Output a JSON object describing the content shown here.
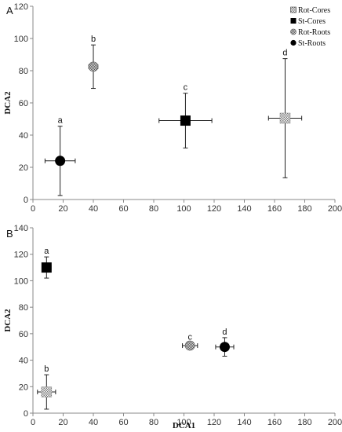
{
  "chart_data": [
    {
      "type": "scatter",
      "panel_label": "A",
      "xlabel": "",
      "ylabel": "DCA2",
      "xlim": [
        0,
        200
      ],
      "ylim": [
        0,
        120
      ],
      "x_ticks": [
        "0",
        "20",
        "40",
        "60",
        "80",
        "100",
        "120",
        "140",
        "160",
        "180",
        "200"
      ],
      "y_ticks": [
        "0",
        "20",
        "40",
        "60",
        "80",
        "100",
        "120"
      ],
      "legend_position": "top-right",
      "legend": [
        {
          "name": "Rot-Cores",
          "marker": "checker-square"
        },
        {
          "name": "St-Cores",
          "marker": "square"
        },
        {
          "name": "Rot-Roots",
          "marker": "checker-circle"
        },
        {
          "name": "St-Roots",
          "marker": "circle"
        }
      ],
      "points": [
        {
          "series": "St-Roots",
          "x": 18,
          "y": 24,
          "xerr": 10,
          "yerr": 21.5,
          "label": "a",
          "marker": "circle"
        },
        {
          "series": "Rot-Roots",
          "x": 40,
          "y": 82.5,
          "xerr": 3,
          "yerr": 13.5,
          "label": "b",
          "marker": "checker-circle"
        },
        {
          "series": "St-Cores",
          "x": 101,
          "y": 49,
          "xerr": 17.5,
          "yerr": 17,
          "label": "c",
          "marker": "square"
        },
        {
          "series": "Rot-Cores",
          "x": 167,
          "y": 50.5,
          "xerr": 11,
          "yerr": 37,
          "label": "d",
          "marker": "checker-square"
        }
      ]
    },
    {
      "type": "scatter",
      "panel_label": "B",
      "xlabel": "DCA1",
      "ylabel": "DCA2",
      "xlim": [
        0,
        200
      ],
      "ylim": [
        0,
        140
      ],
      "x_ticks": [
        "0",
        "20",
        "40",
        "60",
        "80",
        "100",
        "120",
        "140",
        "160",
        "180",
        "200"
      ],
      "y_ticks": [
        "0",
        "20",
        "40",
        "60",
        "80",
        "100",
        "120",
        "140"
      ],
      "points": [
        {
          "series": "St-Cores",
          "x": 9,
          "y": 110,
          "xerr": 3,
          "yerr": 8,
          "label": "a",
          "marker": "square"
        },
        {
          "series": "Rot-Cores",
          "x": 9,
          "y": 16,
          "xerr": 6,
          "yerr": 13,
          "label": "b",
          "marker": "checker-square"
        },
        {
          "series": "Rot-Roots",
          "x": 104,
          "y": 51,
          "xerr": 5,
          "yerr": 2,
          "label": "c",
          "marker": "checker-circle"
        },
        {
          "series": "St-Roots",
          "x": 127,
          "y": 50,
          "xerr": 6,
          "yerr": 7,
          "label": "d",
          "marker": "circle"
        }
      ]
    }
  ]
}
